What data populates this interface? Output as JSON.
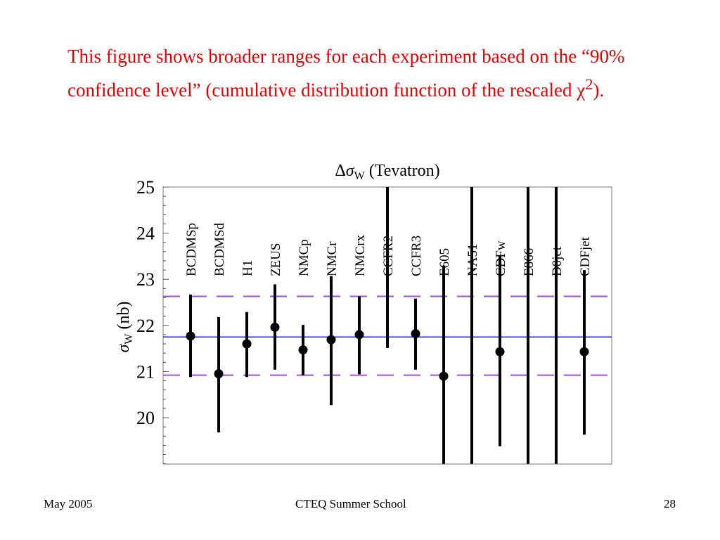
{
  "slide": {
    "intro_text": "This figure shows broader ranges for each experiment based on the “90% confidence level” (cumulative distribution function of the rescaled ",
    "intro_symbol": "χ",
    "intro_superscript": "2",
    "intro_tail": ").",
    "colors": {
      "intro_text": "#e60000"
    }
  },
  "chart_data": {
    "type": "scatter",
    "title": "Δσ_W (Tevatron)",
    "title_parts": {
      "delta": "Δ",
      "sigma": "σ",
      "sub": "W",
      "rest": " (Tevatron)"
    },
    "ylabel": "σ_W (nb)",
    "ylabel_parts": {
      "sigma": "σ",
      "sub": "W",
      "rest": " (nb)"
    },
    "ylim": [
      19,
      25
    ],
    "yticks": [
      20,
      21,
      22,
      23,
      24,
      25
    ],
    "y_minor_step": 0.2,
    "reference_lines": {
      "central": 21.75,
      "band": [
        20.92,
        22.63
      ],
      "central_color": "#1a1adb",
      "band_color": "#a64dd9"
    },
    "experiments": [
      {
        "name": "BCDMSp",
        "value": 21.77,
        "low": 20.88,
        "high": 22.67
      },
      {
        "name": "BCDMSd",
        "value": 20.95,
        "low": 19.68,
        "high": 22.18
      },
      {
        "name": "H1",
        "value": 21.6,
        "low": 20.88,
        "high": 22.29
      },
      {
        "name": "ZEUS",
        "value": 21.96,
        "low": 21.04,
        "high": 22.89
      },
      {
        "name": "NMCp",
        "value": 21.47,
        "low": 20.92,
        "high": 22.01
      },
      {
        "name": "NMCr",
        "value": 21.69,
        "low": 20.27,
        "high": 23.07
      },
      {
        "name": "NMCrx",
        "value": 21.8,
        "low": 20.94,
        "high": 22.63
      },
      {
        "name": "CCFR2",
        "value": null,
        "low": 21.51,
        "high": 25.0
      },
      {
        "name": "CCFR3",
        "value": 21.82,
        "low": 21.04,
        "high": 22.58
      },
      {
        "name": "E605",
        "value": 20.9,
        "low": 19.0,
        "high": 23.3
      },
      {
        "name": "NA51",
        "value": null,
        "low": 19.0,
        "high": 25.0
      },
      {
        "name": "CDFw",
        "value": 21.43,
        "low": 19.38,
        "high": 23.5
      },
      {
        "name": "E866",
        "value": null,
        "low": 19.0,
        "high": 25.0
      },
      {
        "name": "D0jet",
        "value": null,
        "low": 19.0,
        "high": 25.0
      },
      {
        "name": "CDFjet",
        "value": 21.43,
        "low": 19.63,
        "high": 23.2
      }
    ],
    "grid": false
  },
  "footer": {
    "left": "May 2005",
    "center": "CTEQ Summer School",
    "right": "28"
  }
}
